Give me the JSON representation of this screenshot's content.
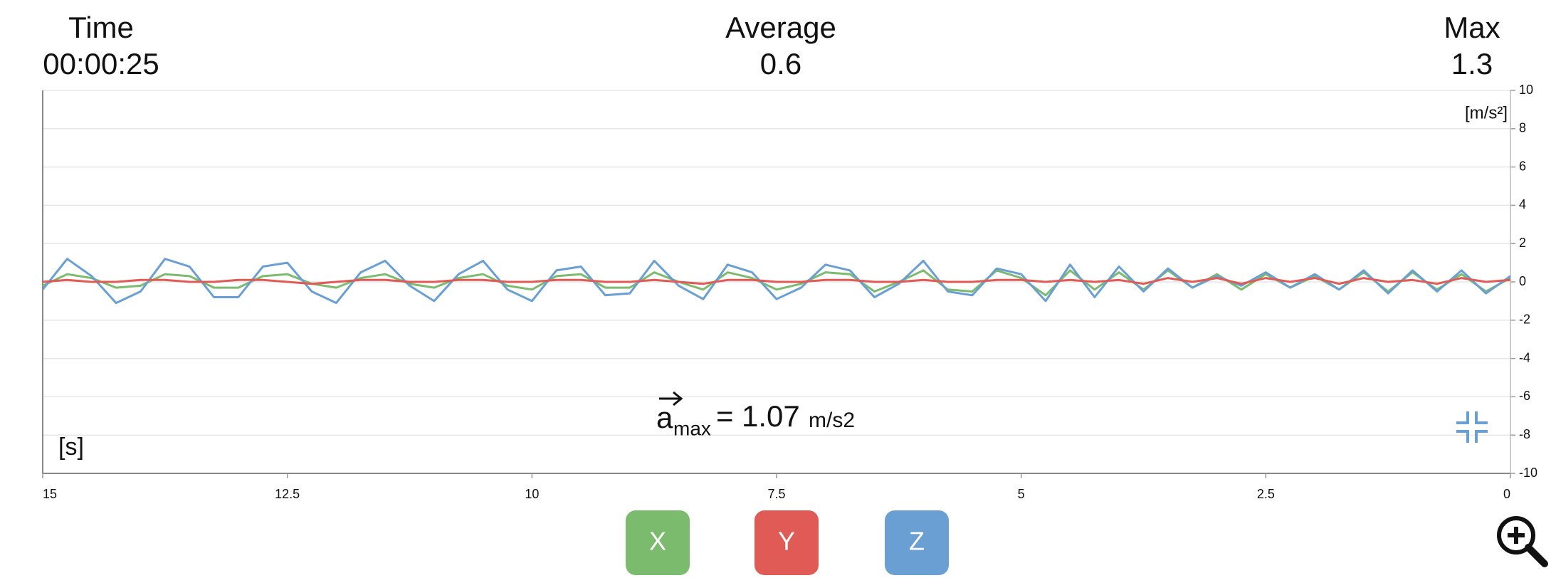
{
  "header": {
    "time_label": "Time",
    "time_value": "00:00:25",
    "average_label": "Average",
    "average_value": "0.6",
    "max_label": "Max",
    "max_value": "1.3"
  },
  "chart_data": {
    "type": "line",
    "y_unit": "[m/s²]",
    "x_unit": "[s]",
    "annotation": {
      "symbol": "a",
      "subscript": "max",
      "equals": "=",
      "value": 1.07,
      "unit": "m/s2"
    },
    "xlim": [
      15,
      0
    ],
    "xticks": [
      15,
      12.5,
      10,
      7.5,
      5,
      2.5,
      0
    ],
    "ylim": [
      -10,
      10
    ],
    "yticks": [
      -10,
      -8,
      -6,
      -4,
      -2,
      0,
      2,
      4,
      6,
      8,
      10
    ],
    "grid": true,
    "x": [
      15,
      14.75,
      14.5,
      14.25,
      14,
      13.75,
      13.5,
      13.25,
      13,
      12.75,
      12.5,
      12.25,
      12,
      11.75,
      11.5,
      11.25,
      11,
      10.75,
      10.5,
      10.25,
      10,
      9.75,
      9.5,
      9.25,
      9,
      8.75,
      8.5,
      8.25,
      8,
      7.75,
      7.5,
      7.25,
      7,
      6.75,
      6.5,
      6.25,
      6,
      5.75,
      5.5,
      5.25,
      5,
      4.75,
      4.5,
      4.25,
      4,
      3.75,
      3.5,
      3.25,
      3,
      2.75,
      2.5,
      2.25,
      2,
      1.75,
      1.5,
      1.25,
      1,
      0.75,
      0.5,
      0.25,
      0
    ],
    "series": [
      {
        "name": "X",
        "color": "#7bbb6e",
        "values": [
          -0.2,
          0.4,
          0.2,
          -0.3,
          -0.2,
          0.4,
          0.3,
          -0.3,
          -0.3,
          0.3,
          0.4,
          -0.1,
          -0.3,
          0.2,
          0.4,
          -0.1,
          -0.3,
          0.2,
          0.4,
          -0.2,
          -0.4,
          0.3,
          0.4,
          -0.3,
          -0.3,
          0.5,
          0.0,
          -0.4,
          0.5,
          0.2,
          -0.4,
          -0.1,
          0.5,
          0.4,
          -0.5,
          0.0,
          0.6,
          -0.4,
          -0.5,
          0.6,
          0.2,
          -0.7,
          0.6,
          -0.4,
          0.5,
          -0.4,
          0.6,
          -0.3,
          0.4,
          -0.4,
          0.4,
          -0.3,
          0.3,
          -0.4,
          0.5,
          -0.5,
          0.5,
          -0.4,
          0.4,
          -0.5,
          0.2
        ]
      },
      {
        "name": "Y",
        "color": "#e05a56",
        "values": [
          0.0,
          0.1,
          0.0,
          0.0,
          0.1,
          0.1,
          0.0,
          0.0,
          0.1,
          0.1,
          0.0,
          -0.1,
          0.0,
          0.1,
          0.1,
          0.0,
          0.0,
          0.1,
          0.1,
          0.0,
          0.0,
          0.1,
          0.1,
          0.0,
          0.0,
          0.1,
          0.0,
          -0.1,
          0.1,
          0.1,
          0.0,
          0.0,
          0.1,
          0.1,
          0.0,
          0.0,
          0.1,
          0.0,
          0.0,
          0.1,
          0.1,
          0.0,
          0.1,
          0.0,
          0.1,
          -0.1,
          0.2,
          0.0,
          0.2,
          -0.1,
          0.2,
          0.0,
          0.2,
          -0.1,
          0.2,
          0.0,
          0.1,
          -0.1,
          0.2,
          0.0,
          0.1
        ]
      },
      {
        "name": "Z",
        "color": "#6a9fd4",
        "values": [
          -0.4,
          1.2,
          0.3,
          -1.1,
          -0.5,
          1.2,
          0.8,
          -0.8,
          -0.8,
          0.8,
          1.0,
          -0.5,
          -1.1,
          0.5,
          1.1,
          -0.2,
          -1.0,
          0.4,
          1.1,
          -0.4,
          -1.0,
          0.6,
          0.8,
          -0.7,
          -0.6,
          1.1,
          -0.2,
          -0.9,
          0.9,
          0.5,
          -0.9,
          -0.3,
          0.9,
          0.6,
          -0.8,
          -0.1,
          1.1,
          -0.5,
          -0.7,
          0.7,
          0.4,
          -1.0,
          0.9,
          -0.8,
          0.8,
          -0.5,
          0.7,
          -0.3,
          0.3,
          -0.2,
          0.5,
          -0.3,
          0.4,
          -0.4,
          0.6,
          -0.6,
          0.6,
          -0.5,
          0.6,
          -0.6,
          0.3
        ]
      }
    ]
  }
}
